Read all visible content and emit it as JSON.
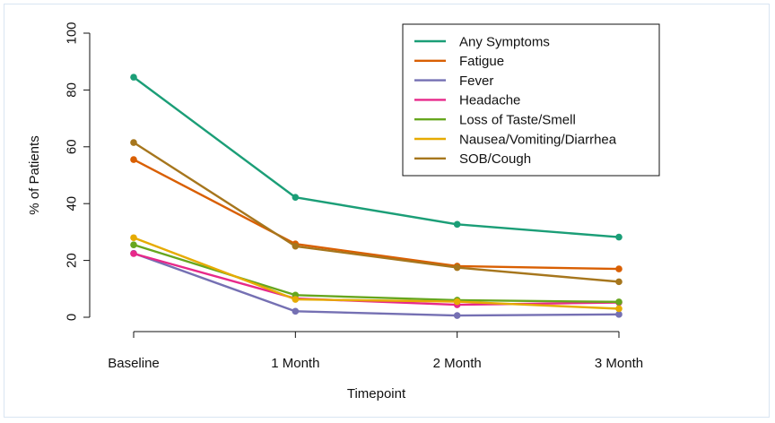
{
  "chart_data": {
    "type": "line",
    "title": "",
    "xlabel": "Timepoint",
    "ylabel": "% of Patients",
    "categories": [
      "Baseline",
      "1 Month",
      "2 Month",
      "3 Month"
    ],
    "ylim": [
      0,
      100
    ],
    "yticks": [
      0,
      20,
      40,
      60,
      80,
      100
    ],
    "legend_position": "top-right",
    "grid": false,
    "series": [
      {
        "name": "Any Symptoms",
        "color": "#1b9e77",
        "values": [
          84.5,
          42.2,
          32.7,
          28.2
        ]
      },
      {
        "name": "Fatigue",
        "color": "#d95f02",
        "values": [
          55.5,
          25.8,
          18.0,
          17.0
        ]
      },
      {
        "name": "Fever",
        "color": "#7570b3",
        "values": [
          22.5,
          2.1,
          0.6,
          1.0
        ]
      },
      {
        "name": "Headache",
        "color": "#e7298a",
        "values": [
          22.4,
          6.6,
          4.4,
          5.2
        ]
      },
      {
        "name": "Loss of Taste/Smell",
        "color": "#66a61e",
        "values": [
          25.5,
          7.8,
          6.0,
          5.4
        ]
      },
      {
        "name": "Nausea/Vomiting/Diarrhea",
        "color": "#e6ab02",
        "values": [
          28.0,
          6.3,
          5.5,
          3.0
        ]
      },
      {
        "name": "SOB/Cough",
        "color": "#a6761d",
        "values": [
          61.5,
          25.0,
          17.5,
          12.5
        ]
      }
    ]
  }
}
